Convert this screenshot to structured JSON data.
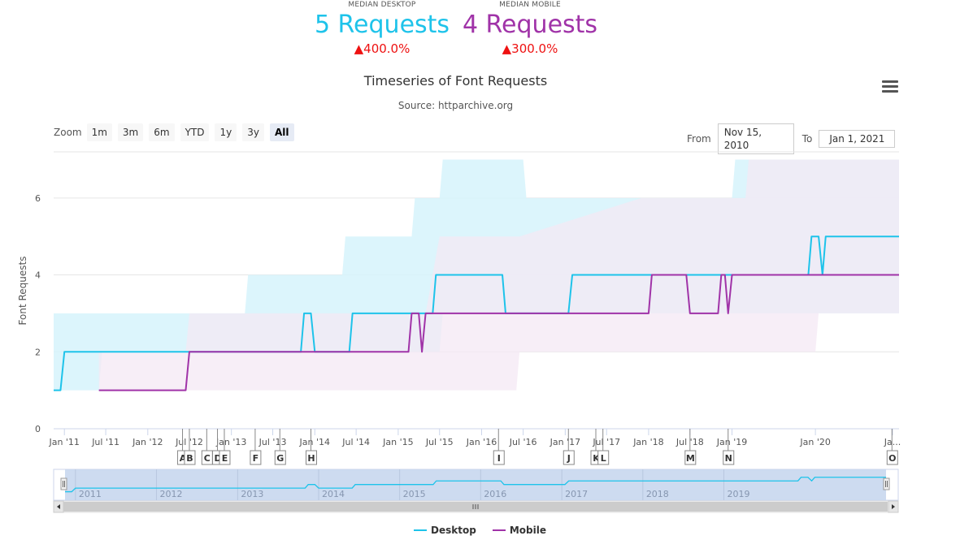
{
  "kpis": {
    "desktop": {
      "label": "MEDIAN DESKTOP",
      "value": "5 Requests",
      "change": "▲400.0%",
      "color": "#1ec3ea"
    },
    "mobile": {
      "label": "MEDIAN MOBILE",
      "value": "4 Requests",
      "change": "▲300.0%",
      "color": "#a033a8"
    }
  },
  "toolbar": {
    "zoom_label": "Zoom",
    "zoom_buttons": [
      "1m",
      "3m",
      "6m",
      "YTD",
      "1y",
      "3y",
      "All"
    ],
    "active_zoom": "All",
    "from_label": "From",
    "from_value": "Nov 15, 2010",
    "to_label": "To",
    "to_value": "Jan 1, 2021"
  },
  "menu_icon": "hamburger-menu-icon",
  "chart_data": {
    "type": "line",
    "title": "Timeseries of Font Requests",
    "subtitle": "Source: httparchive.org",
    "ylabel": "Font Requests",
    "ylim": [
      0,
      7.2
    ],
    "yticks": [
      0,
      2,
      4,
      6
    ],
    "xlim": [
      "2010-11-15",
      "2021-01-01"
    ],
    "xticks": [
      "Jan '11",
      "Jul '11",
      "Jan '12",
      "Jul '12",
      "Jan '13",
      "Jul '13",
      "Jan '14",
      "Jul '14",
      "Jan '15",
      "Jul '15",
      "Jan '16",
      "Jul '16",
      "Jan '17",
      "Jul '17",
      "Jan '18",
      "Jul '18",
      "Jan '19",
      "Jan '20",
      "Ja..."
    ],
    "grid": true,
    "legend_position": "bottom",
    "series": [
      {
        "name": "Desktop",
        "color": "#1ec3ea",
        "band_color": "#d6f3fb",
        "points": [
          [
            "2010-11-15",
            1
          ],
          [
            "2010-12-15",
            1
          ],
          [
            "2011-01-01",
            2
          ],
          [
            "2013-11-01",
            2
          ],
          [
            "2013-11-15",
            3
          ],
          [
            "2013-12-15",
            3
          ],
          [
            "2014-01-01",
            2
          ],
          [
            "2014-06-01",
            2
          ],
          [
            "2014-06-15",
            3
          ],
          [
            "2015-06-01",
            3
          ],
          [
            "2015-06-15",
            4
          ],
          [
            "2016-04-01",
            4
          ],
          [
            "2016-04-15",
            3
          ],
          [
            "2017-01-15",
            3
          ],
          [
            "2017-02-01",
            4
          ],
          [
            "2019-12-01",
            4
          ],
          [
            "2019-12-15",
            5
          ],
          [
            "2020-01-15",
            5
          ],
          [
            "2020-02-01",
            4
          ],
          [
            "2020-02-15",
            5
          ],
          [
            "2021-01-01",
            5
          ]
        ],
        "band": [
          [
            "2010-11-15",
            1,
            3
          ],
          [
            "2011-06-01",
            1,
            3
          ],
          [
            "2011-06-15",
            2,
            3
          ],
          [
            "2013-03-01",
            2,
            3
          ],
          [
            "2013-03-15",
            2,
            4
          ],
          [
            "2013-12-15",
            2,
            4
          ],
          [
            "2014-01-01",
            2,
            4
          ],
          [
            "2014-05-01",
            2,
            4
          ],
          [
            "2014-05-15",
            2,
            5
          ],
          [
            "2015-03-01",
            2,
            5
          ],
          [
            "2015-03-15",
            2,
            6
          ],
          [
            "2015-07-01",
            2,
            6
          ],
          [
            "2015-07-15",
            3,
            7
          ],
          [
            "2016-07-01",
            3,
            7
          ],
          [
            "2016-07-15",
            3,
            6
          ],
          [
            "2019-01-01",
            3,
            6
          ],
          [
            "2019-01-15",
            3,
            7
          ],
          [
            "2021-01-01",
            3,
            7
          ]
        ]
      },
      {
        "name": "Mobile",
        "color": "#a033a8",
        "band_color": "#f4e8f4",
        "points": [
          [
            "2011-06-01",
            1
          ],
          [
            "2012-06-15",
            1
          ],
          [
            "2012-07-01",
            2
          ],
          [
            "2015-02-15",
            2
          ],
          [
            "2015-03-01",
            3
          ],
          [
            "2015-04-01",
            3
          ],
          [
            "2015-04-15",
            2
          ],
          [
            "2015-05-01",
            3
          ],
          [
            "2018-01-01",
            3
          ],
          [
            "2018-01-15",
            4
          ],
          [
            "2018-06-15",
            4
          ],
          [
            "2018-07-01",
            3
          ],
          [
            "2018-11-01",
            3
          ],
          [
            "2018-11-15",
            4
          ],
          [
            "2018-12-01",
            4
          ],
          [
            "2018-12-15",
            3
          ],
          [
            "2019-01-01",
            4
          ],
          [
            "2021-01-01",
            4
          ]
        ],
        "band": [
          [
            "2011-06-01",
            1,
            2
          ],
          [
            "2012-06-15",
            1,
            2
          ],
          [
            "2012-07-01",
            1,
            3
          ],
          [
            "2015-04-15",
            1,
            3
          ],
          [
            "2015-05-01",
            1,
            3
          ],
          [
            "2015-07-01",
            1,
            5
          ],
          [
            "2016-06-01",
            1,
            5
          ],
          [
            "2016-06-15",
            2,
            5
          ],
          [
            "2017-12-01",
            2,
            6
          ],
          [
            "2019-03-01",
            2,
            6
          ],
          [
            "2019-03-15",
            2,
            7
          ],
          [
            "2020-01-01",
            2,
            7
          ],
          [
            "2020-01-15",
            3,
            7
          ],
          [
            "2021-01-01",
            3,
            7
          ]
        ]
      }
    ],
    "flags": [
      {
        "label": "A",
        "date": "2012-06-01"
      },
      {
        "label": "B",
        "date": "2012-07-01"
      },
      {
        "label": "C",
        "date": "2012-09-15"
      },
      {
        "label": "D",
        "date": "2012-11-01"
      },
      {
        "label": "E",
        "date": "2012-12-01"
      },
      {
        "label": "F",
        "date": "2013-04-15"
      },
      {
        "label": "G",
        "date": "2013-08-01"
      },
      {
        "label": "H",
        "date": "2013-12-15"
      },
      {
        "label": "I",
        "date": "2016-03-15"
      },
      {
        "label": "J",
        "date": "2017-01-15"
      },
      {
        "label": "K",
        "date": "2017-05-15"
      },
      {
        "label": "L",
        "date": "2017-06-15"
      },
      {
        "label": "M",
        "date": "2018-07-01"
      },
      {
        "label": "N",
        "date": "2018-12-15"
      },
      {
        "label": "O",
        "date": "2020-12-01"
      }
    ],
    "navigator": {
      "years": [
        "2011",
        "2012",
        "2013",
        "2014",
        "2015",
        "2016",
        "2017",
        "2018",
        "2019"
      ],
      "scrollbar_icon": "grip-icon"
    }
  }
}
